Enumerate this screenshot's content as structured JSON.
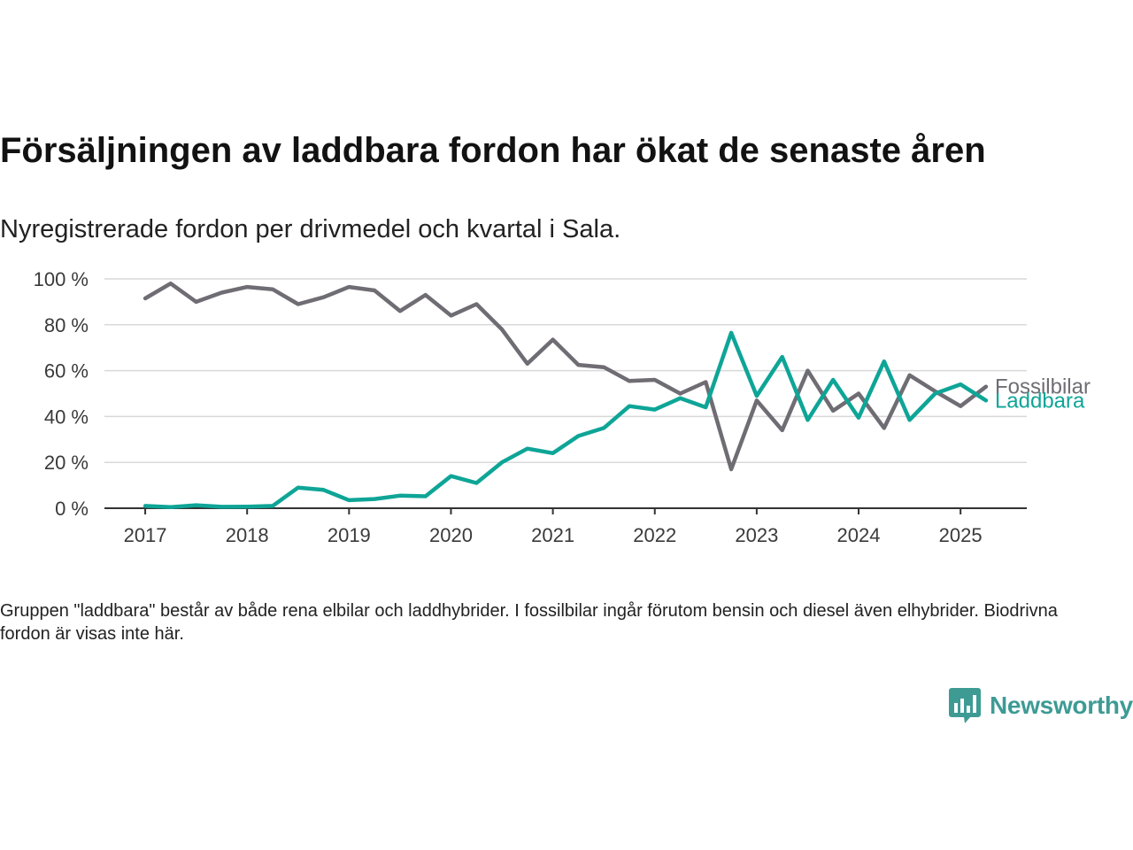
{
  "chart_data": {
    "type": "line",
    "title": "Försäljningen av laddbara fordon har ökat de senaste åren",
    "subtitle": "Nyregistrerade fordon per drivmedel och kvartal i Sala.",
    "xlabel": "",
    "ylabel": "",
    "x_start": 2017,
    "x_step": 0.25,
    "xlim": [
      2016.6,
      2025.65
    ],
    "ylim": [
      0,
      100
    ],
    "y_ticks": [
      0,
      20,
      40,
      60,
      80,
      100
    ],
    "y_tick_labels": [
      "0 %",
      "20 %",
      "40 %",
      "60 %",
      "80 %",
      "100 %"
    ],
    "x_ticks": [
      2017,
      2018,
      2019,
      2020,
      2021,
      2022,
      2023,
      2024,
      2025
    ],
    "x_tick_labels": [
      "2017",
      "2018",
      "2019",
      "2020",
      "2021",
      "2022",
      "2023",
      "2024",
      "2025"
    ],
    "grid": true,
    "legend": "direct-labels-right",
    "series": [
      {
        "name": "Fossilbilar",
        "color": "#6f6d73",
        "values": [
          91.5,
          98,
          90,
          94,
          96.5,
          95.5,
          89,
          92,
          96.5,
          95,
          86,
          93,
          84,
          89,
          78,
          63,
          73.5,
          62.5,
          61.5,
          55.5,
          56,
          50,
          55,
          17,
          47,
          34,
          60,
          42.5,
          50,
          35,
          58,
          51,
          44.5,
          53
        ]
      },
      {
        "name": "Laddbara",
        "color": "#0ea597",
        "values": [
          1,
          0.5,
          1.3,
          0.6,
          0.7,
          1,
          9,
          8,
          3.5,
          4,
          5.5,
          5.2,
          14,
          11,
          20,
          26,
          24,
          31.5,
          35,
          44.5,
          43,
          48,
          44,
          76.5,
          49,
          66,
          38.5,
          56,
          39.5,
          64,
          38.5,
          50,
          54,
          47
        ]
      }
    ]
  },
  "footnote": "Gruppen \"laddbara\" består av både rena elbilar och laddhybrider. I fossilbilar ingår förutom bensin och diesel även elhybrider. Biodrivna fordon är visas inte här.",
  "brand": {
    "name": "Newsworthy",
    "icon": "bar-chart-speech-bubble-icon",
    "color": "#3d9b94"
  }
}
